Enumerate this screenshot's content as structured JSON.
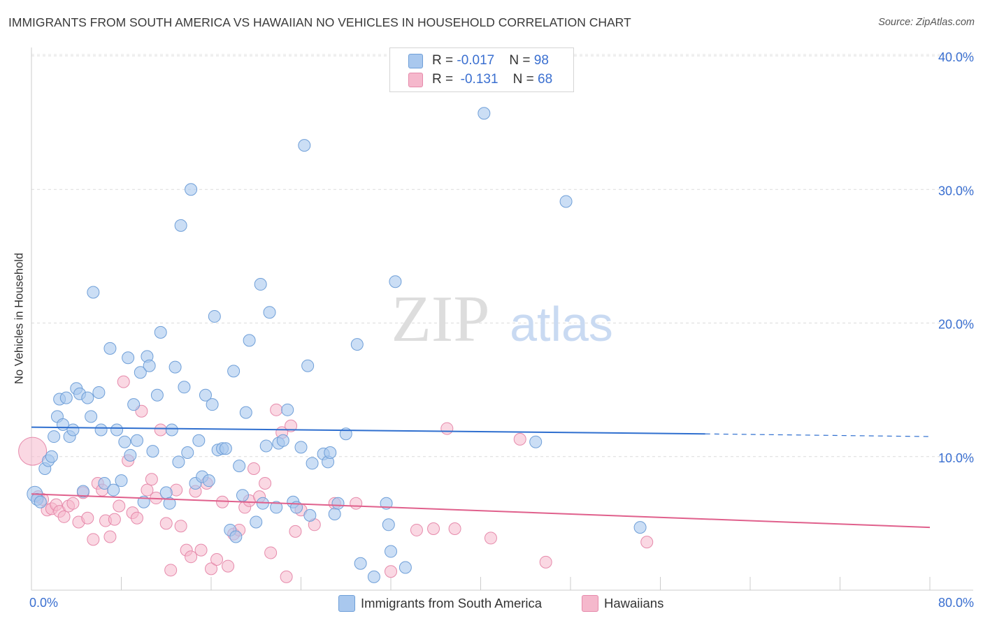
{
  "header": {
    "title": "IMMIGRANTS FROM SOUTH AMERICA VS HAWAIIAN NO VEHICLES IN HOUSEHOLD CORRELATION CHART",
    "source": "Source: ZipAtlas.com"
  },
  "watermark": {
    "zip": "ZIP",
    "atlas": "atlas"
  },
  "legend": {
    "blue": {
      "r_label": "R = ",
      "r_value": "-0.017",
      "n_label": "N = ",
      "n_value": "98"
    },
    "pink": {
      "r_label": "R = ",
      "r_value": "-0.131",
      "n_label": "N = ",
      "n_value": "68"
    }
  },
  "bottom_legend": {
    "blue": "Immigrants from South America",
    "pink": "Hawaiians"
  },
  "colors": {
    "blue_fill": "#a9c8ee",
    "blue_stroke": "#6f9fd8",
    "blue_line": "#2f6fcf",
    "pink_fill": "#f5b8cc",
    "pink_stroke": "#e68aab",
    "pink_line": "#e0608c",
    "axis_label": "#3a6fd0"
  },
  "chart_data": {
    "type": "scatter",
    "title": "IMMIGRANTS FROM SOUTH AMERICA VS HAWAIIAN NO VEHICLES IN HOUSEHOLD CORRELATION CHART",
    "xlabel": "",
    "ylabel": "No Vehicles in Household",
    "xlim": [
      0,
      80
    ],
    "ylim": [
      0,
      40
    ],
    "x_tick_labels": [
      "0.0%",
      "80.0%"
    ],
    "y_ticks": [
      10,
      20,
      30,
      40
    ],
    "y_tick_labels": [
      "10.0%",
      "20.0%",
      "30.0%",
      "40.0%"
    ],
    "grid": true,
    "series": [
      {
        "name": "Immigrants from South America",
        "color": "#a9c8ee",
        "trend": {
          "x_start": 0,
          "y_start": 12.2,
          "x_solid_end": 60,
          "y_solid_end": 11.7,
          "x_end": 80,
          "y_end": 11.5
        },
        "points": [
          [
            0.3,
            7.2
          ],
          [
            0.5,
            6.8
          ],
          [
            0.8,
            6.6
          ],
          [
            1.2,
            9.1
          ],
          [
            1.5,
            9.7
          ],
          [
            1.8,
            10.0
          ],
          [
            2.0,
            11.5
          ],
          [
            2.3,
            13.0
          ],
          [
            2.5,
            14.3
          ],
          [
            2.8,
            12.4
          ],
          [
            3.1,
            14.4
          ],
          [
            3.4,
            11.5
          ],
          [
            3.7,
            12.0
          ],
          [
            4.0,
            15.1
          ],
          [
            4.3,
            14.7
          ],
          [
            4.6,
            7.4
          ],
          [
            5.0,
            14.4
          ],
          [
            5.3,
            13.0
          ],
          [
            5.5,
            22.3
          ],
          [
            6.0,
            14.8
          ],
          [
            6.2,
            12.0
          ],
          [
            6.5,
            8.0
          ],
          [
            7.0,
            18.1
          ],
          [
            7.3,
            7.5
          ],
          [
            7.6,
            12.0
          ],
          [
            8.0,
            8.2
          ],
          [
            8.3,
            11.1
          ],
          [
            8.6,
            17.4
          ],
          [
            8.8,
            10.1
          ],
          [
            9.1,
            13.9
          ],
          [
            9.4,
            11.2
          ],
          [
            9.7,
            16.3
          ],
          [
            10.0,
            6.6
          ],
          [
            10.3,
            17.5
          ],
          [
            10.5,
            16.8
          ],
          [
            10.8,
            10.4
          ],
          [
            11.2,
            14.6
          ],
          [
            11.5,
            19.3
          ],
          [
            12.0,
            7.3
          ],
          [
            12.3,
            6.5
          ],
          [
            12.5,
            12.0
          ],
          [
            12.8,
            16.7
          ],
          [
            13.1,
            9.6
          ],
          [
            13.3,
            27.3
          ],
          [
            13.6,
            15.2
          ],
          [
            13.9,
            10.3
          ],
          [
            14.2,
            30.0
          ],
          [
            14.6,
            8.0
          ],
          [
            14.9,
            11.2
          ],
          [
            15.2,
            8.5
          ],
          [
            15.5,
            14.6
          ],
          [
            15.8,
            8.2
          ],
          [
            16.1,
            13.9
          ],
          [
            16.3,
            20.5
          ],
          [
            16.6,
            10.5
          ],
          [
            17.0,
            10.6
          ],
          [
            17.3,
            10.6
          ],
          [
            17.7,
            4.5
          ],
          [
            18.0,
            16.4
          ],
          [
            18.2,
            4.0
          ],
          [
            18.5,
            9.3
          ],
          [
            18.8,
            7.1
          ],
          [
            19.1,
            13.3
          ],
          [
            19.4,
            18.7
          ],
          [
            20.0,
            5.1
          ],
          [
            20.4,
            22.9
          ],
          [
            20.6,
            6.5
          ],
          [
            20.9,
            10.8
          ],
          [
            21.2,
            20.8
          ],
          [
            21.8,
            6.2
          ],
          [
            22.0,
            11.0
          ],
          [
            22.4,
            11.2
          ],
          [
            22.8,
            13.5
          ],
          [
            23.3,
            6.6
          ],
          [
            23.6,
            6.2
          ],
          [
            24.0,
            10.7
          ],
          [
            24.3,
            33.3
          ],
          [
            24.6,
            16.8
          ],
          [
            24.8,
            5.6
          ],
          [
            25.0,
            9.5
          ],
          [
            26.0,
            10.2
          ],
          [
            26.4,
            9.6
          ],
          [
            26.6,
            10.3
          ],
          [
            27.0,
            5.7
          ],
          [
            27.3,
            6.5
          ],
          [
            28.0,
            11.7
          ],
          [
            29.0,
            18.4
          ],
          [
            29.3,
            2.0
          ],
          [
            30.5,
            1.0
          ],
          [
            31.6,
            6.5
          ],
          [
            31.8,
            4.9
          ],
          [
            32.0,
            2.9
          ],
          [
            32.4,
            23.1
          ],
          [
            33.3,
            1.7
          ],
          [
            40.3,
            35.7
          ],
          [
            44.9,
            11.1
          ],
          [
            47.6,
            29.1
          ],
          [
            54.2,
            4.7
          ]
        ]
      },
      {
        "name": "Hawaiians",
        "color": "#f5b8cc",
        "trend": {
          "x_start": 0,
          "y_start": 7.2,
          "x_end": 80,
          "y_end": 4.7
        },
        "points": [
          [
            0.1,
            10.4
          ],
          [
            0.6,
            7.0
          ],
          [
            1.0,
            6.8
          ],
          [
            1.4,
            6.0
          ],
          [
            1.8,
            6.1
          ],
          [
            2.2,
            6.4
          ],
          [
            2.5,
            5.9
          ],
          [
            2.9,
            5.5
          ],
          [
            3.3,
            6.3
          ],
          [
            3.7,
            6.5
          ],
          [
            4.2,
            5.1
          ],
          [
            4.6,
            7.3
          ],
          [
            5.0,
            5.4
          ],
          [
            5.5,
            3.8
          ],
          [
            5.9,
            8.0
          ],
          [
            6.3,
            7.5
          ],
          [
            6.6,
            5.2
          ],
          [
            7.0,
            4.0
          ],
          [
            7.4,
            5.3
          ],
          [
            7.8,
            6.3
          ],
          [
            8.2,
            15.6
          ],
          [
            8.6,
            9.7
          ],
          [
            9.0,
            5.8
          ],
          [
            9.4,
            5.4
          ],
          [
            9.8,
            13.4
          ],
          [
            10.3,
            7.5
          ],
          [
            10.7,
            8.3
          ],
          [
            11.1,
            6.9
          ],
          [
            11.5,
            12.0
          ],
          [
            12.0,
            5.0
          ],
          [
            12.4,
            1.5
          ],
          [
            12.9,
            7.5
          ],
          [
            13.3,
            4.8
          ],
          [
            13.8,
            3.0
          ],
          [
            14.2,
            2.5
          ],
          [
            14.6,
            7.4
          ],
          [
            15.1,
            3.0
          ],
          [
            15.6,
            8.0
          ],
          [
            16.0,
            1.6
          ],
          [
            16.5,
            2.3
          ],
          [
            17.0,
            6.6
          ],
          [
            17.5,
            1.8
          ],
          [
            18.0,
            4.2
          ],
          [
            18.5,
            4.5
          ],
          [
            19.0,
            6.2
          ],
          [
            19.4,
            6.7
          ],
          [
            19.8,
            9.1
          ],
          [
            20.3,
            7.0
          ],
          [
            20.8,
            8.0
          ],
          [
            21.3,
            2.8
          ],
          [
            21.8,
            13.5
          ],
          [
            22.3,
            11.8
          ],
          [
            22.7,
            1.0
          ],
          [
            23.1,
            12.3
          ],
          [
            23.5,
            4.4
          ],
          [
            24.0,
            6.0
          ],
          [
            25.2,
            4.9
          ],
          [
            27.0,
            6.5
          ],
          [
            28.9,
            6.5
          ],
          [
            32.0,
            1.4
          ],
          [
            34.3,
            4.5
          ],
          [
            35.8,
            4.6
          ],
          [
            37.0,
            12.1
          ],
          [
            37.7,
            4.6
          ],
          [
            40.9,
            3.9
          ],
          [
            43.5,
            11.3
          ],
          [
            45.8,
            2.1
          ],
          [
            54.8,
            3.6
          ]
        ]
      }
    ]
  }
}
